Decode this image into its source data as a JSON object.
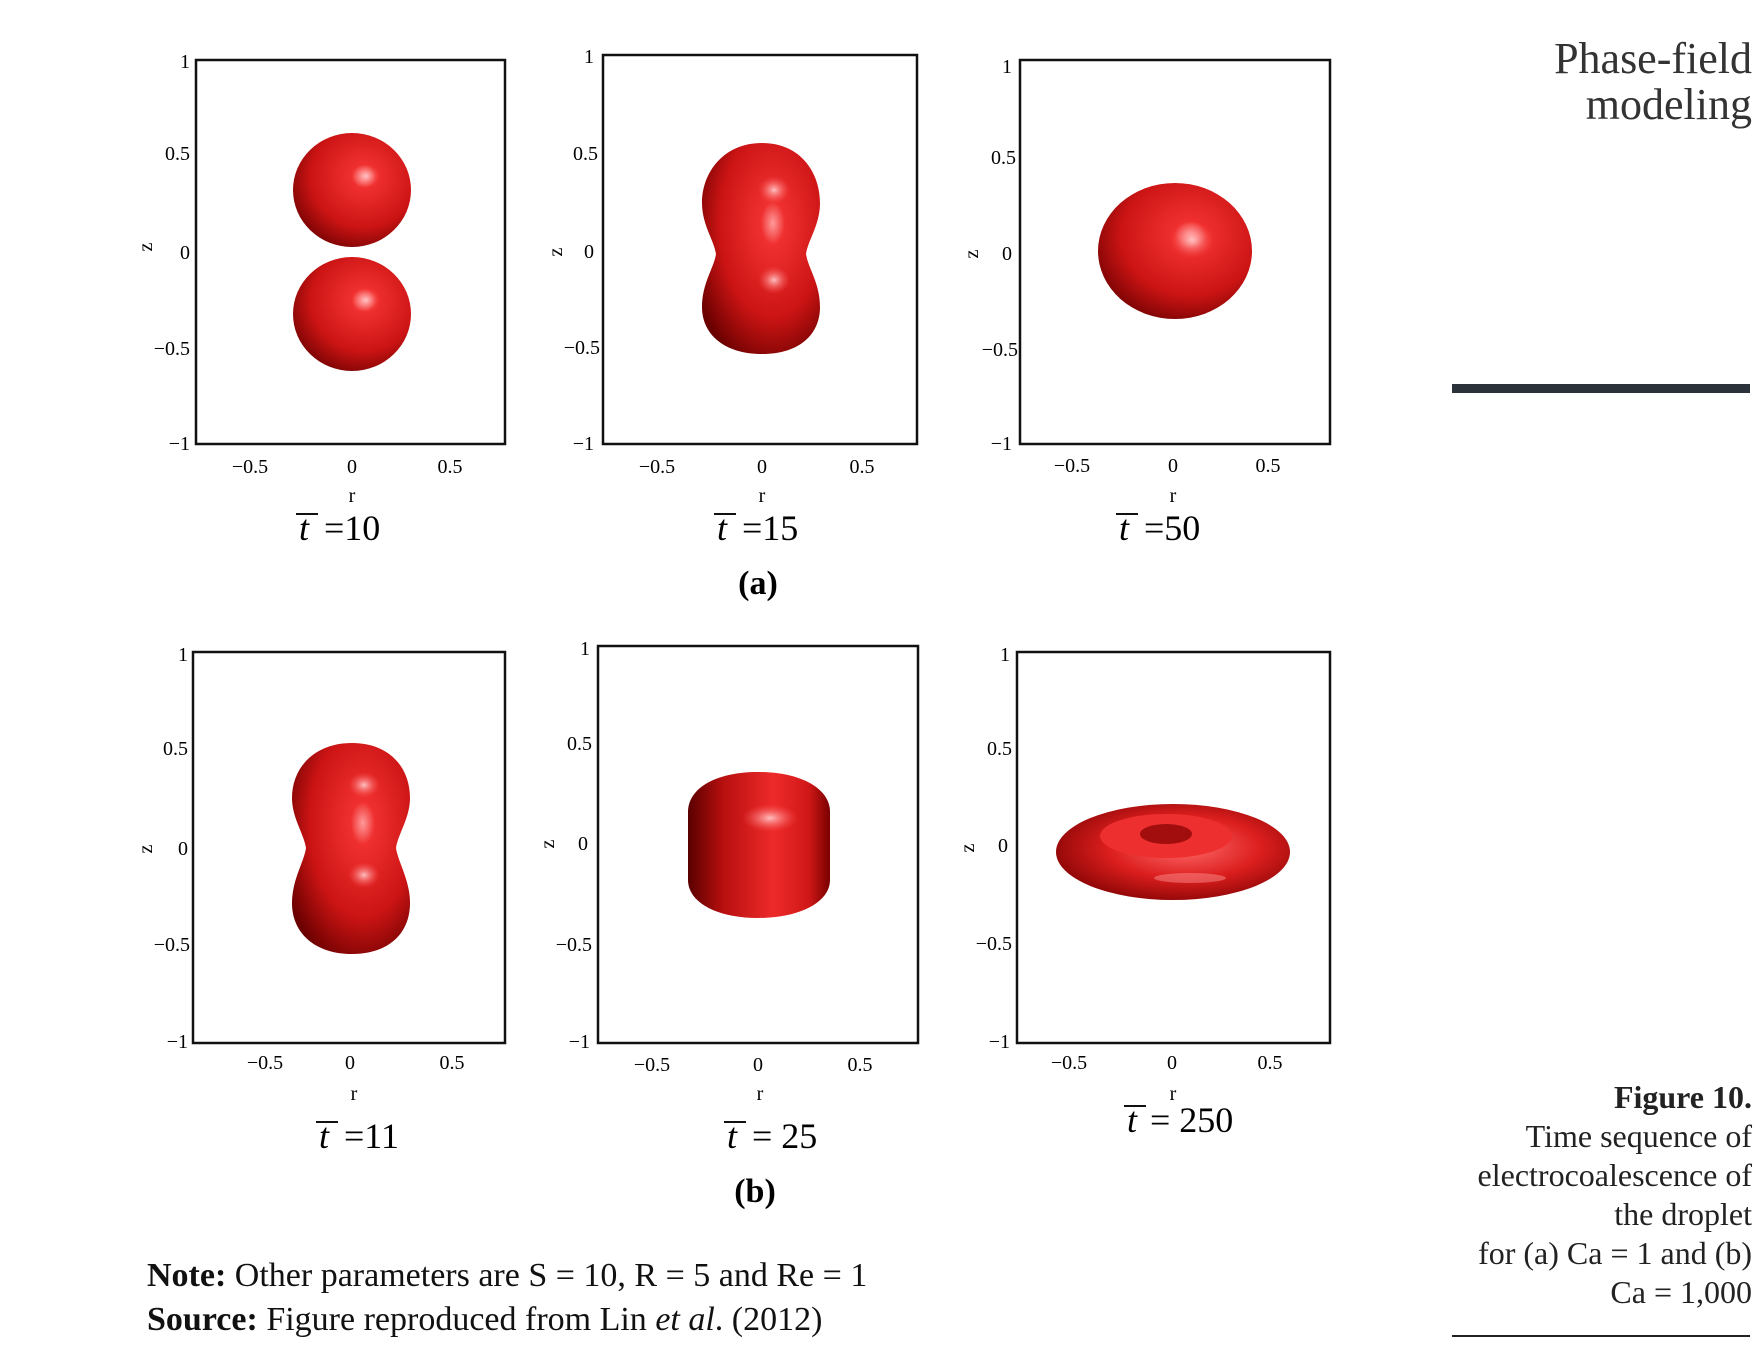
{
  "running_head": {
    "line1": "Phase-field",
    "line2": "modeling"
  },
  "caption": {
    "label": "Figure 10.",
    "lines": [
      "Time sequence of",
      "electrocoalescence of",
      "the droplet",
      "for (a) Ca = 1 and (b)",
      "Ca = 1,000"
    ]
  },
  "note": {
    "label": "Note:",
    "text": " Other parameters are S = 10, R = 5 and Re = 1"
  },
  "source": {
    "label": "Source:",
    "text_before": " Figure reproduced from Lin ",
    "italic": "et al",
    "text_after": ". (2012)"
  },
  "group_labels": [
    "(a)",
    "(b)"
  ],
  "time_symbol": "t",
  "colors": {
    "droplet": "#d91a1a",
    "droplet_dark": "#6b0000",
    "droplet_highlight": "#ff8c8c"
  },
  "panels": [
    {
      "time": "=10",
      "xlabel": "r",
      "ylabel": "z",
      "xticks": [
        "−0.5",
        "0",
        "0.5"
      ],
      "yticks": [
        "1",
        "0.5",
        "0",
        "−0.5",
        "−1"
      ],
      "shape": "two-separate-spheres"
    },
    {
      "time": "=15",
      "xlabel": "r",
      "ylabel": "z",
      "xticks": [
        "−0.5",
        "0",
        "0.5"
      ],
      "yticks": [
        "1",
        "0.5",
        "0",
        "−0.5",
        "−1"
      ],
      "shape": "peanut-merging"
    },
    {
      "time": "=50",
      "xlabel": "r",
      "ylabel": "z",
      "xticks": [
        "−0.5",
        "0",
        "0.5"
      ],
      "yticks": [
        "1",
        "0.5",
        "0",
        "−0.5",
        "−1"
      ],
      "shape": "oblate-ellipsoid"
    },
    {
      "time": "=11",
      "xlabel": "r",
      "ylabel": "z",
      "xticks": [
        "−0.5",
        "0",
        "0.5"
      ],
      "yticks": [
        "1",
        "0.5",
        "0",
        "−0.5",
        "−1"
      ],
      "shape": "peanut-merging"
    },
    {
      "time": "= 25",
      "xlabel": "r",
      "ylabel": "z",
      "xticks": [
        "−0.5",
        "0",
        "0.5"
      ],
      "yticks": [
        "1",
        "0.5",
        "0",
        "−0.5",
        "−1"
      ],
      "shape": "rounded-cylinder"
    },
    {
      "time": "= 250",
      "xlabel": "r",
      "ylabel": "z",
      "xticks": [
        "−0.5",
        "0",
        "0.5"
      ],
      "yticks": [
        "1",
        "0.5",
        "0",
        "−0.5",
        "−1"
      ],
      "shape": "torus-disc"
    }
  ]
}
